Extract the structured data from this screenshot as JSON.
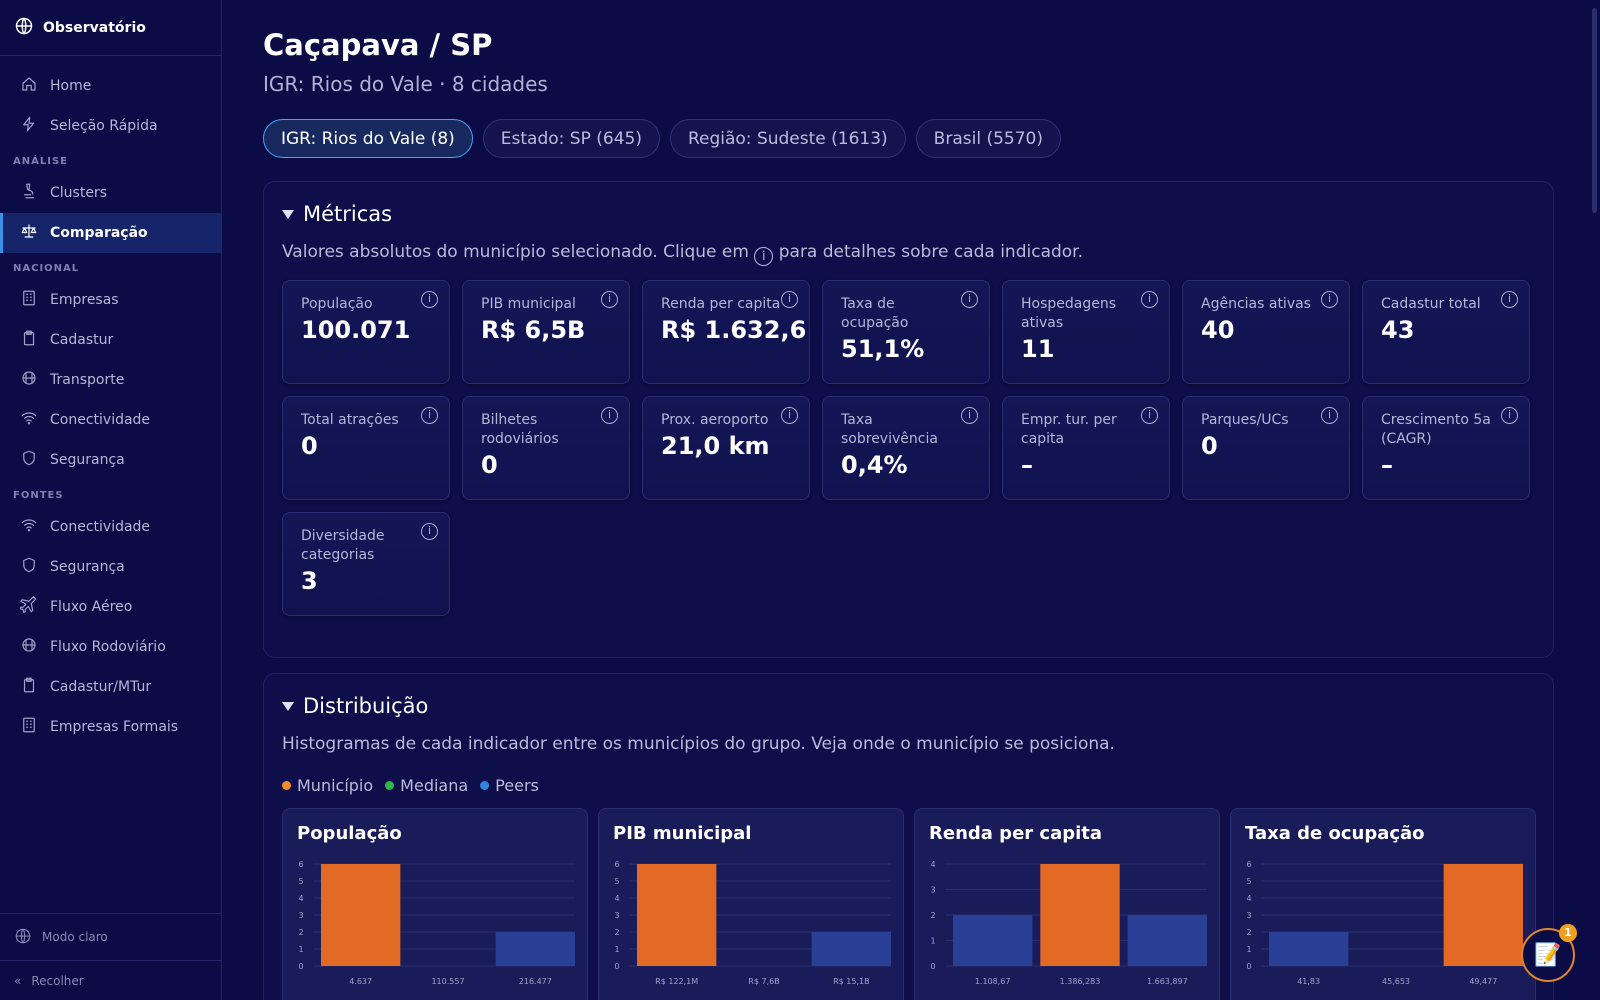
{
  "app": {
    "brand": "Observatório"
  },
  "sidebar": {
    "top_items": [
      {
        "label": "Home",
        "icon": "home-icon"
      },
      {
        "label": "Seleção Rápida",
        "icon": "bolt-icon"
      }
    ],
    "sections": [
      {
        "title": "ANÁLISE",
        "items": [
          {
            "label": "Clusters",
            "icon": "microscope-icon",
            "active": false
          },
          {
            "label": "Comparação",
            "icon": "scale-icon",
            "active": true
          }
        ]
      },
      {
        "title": "NACIONAL",
        "items": [
          {
            "label": "Empresas",
            "icon": "building-icon"
          },
          {
            "label": "Cadastur",
            "icon": "clipboard-icon"
          },
          {
            "label": "Transporte",
            "icon": "bus-icon"
          },
          {
            "label": "Conectividade",
            "icon": "wifi-icon"
          },
          {
            "label": "Segurança",
            "icon": "shield-icon"
          }
        ]
      },
      {
        "title": "FONTES",
        "items": [
          {
            "label": "Conectividade",
            "icon": "wifi-icon"
          },
          {
            "label": "Segurança",
            "icon": "shield-icon"
          },
          {
            "label": "Fluxo Aéreo",
            "icon": "plane-icon"
          },
          {
            "label": "Fluxo Rodoviário",
            "icon": "bus-icon"
          },
          {
            "label": "Cadastur/MTur",
            "icon": "clipboard-icon"
          },
          {
            "label": "Empresas Formais",
            "icon": "building-icon"
          }
        ]
      }
    ],
    "theme_toggle": "Modo claro",
    "collapse": "Recolher"
  },
  "header": {
    "title": "Caçapava / SP",
    "subtitle": "IGR: Rios do Vale · 8 cidades"
  },
  "chips": [
    {
      "label": "IGR: Rios do Vale (8)",
      "active": true
    },
    {
      "label": "Estado: SP (645)",
      "active": false
    },
    {
      "label": "Região: Sudeste (1613)",
      "active": false
    },
    {
      "label": "Brasil (5570)",
      "active": false
    }
  ],
  "metrics_panel": {
    "title": "Métricas",
    "desc_before": "Valores absolutos do município selecionado. Clique em",
    "desc_after": "para detalhes sobre cada indicador.",
    "info_glyph": "i",
    "cards": [
      {
        "label": "População",
        "value": "100.071"
      },
      {
        "label": "PIB municipal",
        "value": "R$ 6,5B"
      },
      {
        "label": "Renda per capita",
        "value": "R$ 1.632,6"
      },
      {
        "label": "Taxa de ocupação",
        "value": "51,1%"
      },
      {
        "label": "Hospedagens ativas",
        "value": "11"
      },
      {
        "label": "Agências ativas",
        "value": "40"
      },
      {
        "label": "Cadastur total",
        "value": "43"
      },
      {
        "label": "Total atrações",
        "value": "0"
      },
      {
        "label": "Bilhetes rodoviários",
        "value": "0"
      },
      {
        "label": "Prox. aeroporto",
        "value": "21,0 km"
      },
      {
        "label": "Taxa sobrevivência",
        "value": "0,4%"
      },
      {
        "label": "Empr. tur. per capita",
        "value": "–"
      },
      {
        "label": "Parques/UCs",
        "value": "0"
      },
      {
        "label": "Crescimento 5a (CAGR)",
        "value": "–"
      },
      {
        "label": "Diversidade categorias",
        "value": "3"
      }
    ]
  },
  "distribution_panel": {
    "title": "Distribuição",
    "desc": "Histogramas de cada indicador entre os municípios do grupo. Veja onde o município se posiciona.",
    "legend": [
      {
        "label": "Município",
        "color": "#f28a2e"
      },
      {
        "label": "Mediana",
        "color": "#2eb84a"
      },
      {
        "label": "Peers",
        "color": "#2f86e0"
      }
    ]
  },
  "colors": {
    "municipio_bar": "#e36a24",
    "peers_bar": "#2a3f96",
    "accent": "#4aa0ff"
  },
  "chart_data": [
    {
      "type": "bar",
      "title": "População",
      "ylim": [
        0,
        6
      ],
      "yticks": [
        0,
        1,
        2,
        3,
        4,
        5,
        6
      ],
      "x_tick_labels": [
        "4.637",
        "110.557",
        "216.477"
      ],
      "bins": [
        {
          "value": 6,
          "kind": "municipio"
        },
        {
          "value": 0,
          "kind": "peers"
        },
        {
          "value": 2,
          "kind": "peers"
        }
      ]
    },
    {
      "type": "bar",
      "title": "PIB municipal",
      "ylim": [
        0,
        6
      ],
      "yticks": [
        0,
        1,
        2,
        3,
        4,
        5,
        6
      ],
      "x_tick_labels": [
        "R$ 122,1M",
        "R$ 7,6B",
        "R$ 15,1B"
      ],
      "bins": [
        {
          "value": 6,
          "kind": "municipio"
        },
        {
          "value": 0,
          "kind": "peers"
        },
        {
          "value": 2,
          "kind": "peers"
        }
      ]
    },
    {
      "type": "bar",
      "title": "Renda per capita",
      "ylim": [
        0,
        4
      ],
      "yticks": [
        0,
        1,
        2,
        3,
        4
      ],
      "x_tick_labels": [
        "1.108,67",
        "1.386,283",
        "1.663,897"
      ],
      "bins": [
        {
          "value": 2,
          "kind": "peers"
        },
        {
          "value": 4,
          "kind": "municipio"
        },
        {
          "value": 2,
          "kind": "peers"
        }
      ]
    },
    {
      "type": "bar",
      "title": "Taxa de ocupação",
      "ylim": [
        0,
        6
      ],
      "yticks": [
        0,
        1,
        2,
        3,
        4,
        5,
        6
      ],
      "x_tick_labels": [
        "41,83",
        "45,653",
        "49,477"
      ],
      "bins": [
        {
          "value": 2,
          "kind": "peers"
        },
        {
          "value": 0,
          "kind": "peers"
        },
        {
          "value": 6,
          "kind": "municipio"
        }
      ]
    }
  ],
  "fab": {
    "badge": "1",
    "icon": "📝"
  }
}
